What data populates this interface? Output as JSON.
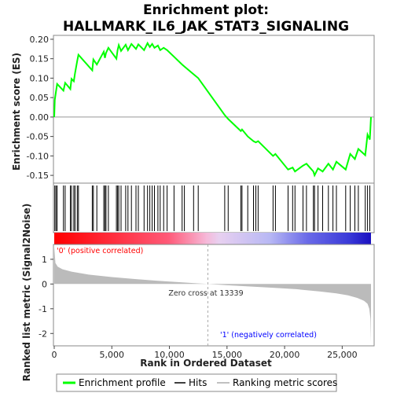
{
  "title_line1": "Enrichment plot:",
  "title_line2": "HALLMARK_IL6_JAK_STAT3_SIGNALING",
  "es_ylabel": "Enrichment score (ES)",
  "metric_ylabel": "Ranked list metric (Signal2Noise)",
  "xlabel": "Rank in Ordered Dataset",
  "zero_cross_label": "Zero cross at 13339",
  "pos_label": "'0' (positive correlated)",
  "neg_label": "'1' (negatively correlated)",
  "legend": [
    {
      "label": "Enrichment profile",
      "color": "#00ff00",
      "icon": "green-line"
    },
    {
      "label": "Hits",
      "color": "#000000",
      "icon": "black-line"
    },
    {
      "label": "Ranking metric scores",
      "color": "#c0c0c0",
      "icon": "gray-line"
    }
  ],
  "colors": {
    "profile": "#00ff00",
    "pos_text": "#ff0000",
    "neg_text": "#0000ff",
    "metric": "#bbbbbb"
  },
  "chart_data": {
    "type": "line",
    "x_ticks": [
      0,
      5000,
      10000,
      15000,
      20000,
      25000
    ],
    "x_tick_labels": [
      "0",
      "5,000",
      "10,000",
      "15,000",
      "20,000",
      "25,000"
    ],
    "xlim": [
      0,
      28600
    ],
    "es_yticks": [
      0.2,
      0.15,
      0.1,
      0.05,
      0.0,
      -0.05,
      -0.1,
      -0.15
    ],
    "es_ytick_labels": [
      "0.20",
      "0.15",
      "0.10",
      "0.05",
      "0.00",
      "-0.05",
      "-0.10",
      "-0.15"
    ],
    "es_ylim": [
      -0.17,
      0.21
    ],
    "metric_yticks": [
      1,
      0,
      -1,
      -2
    ],
    "metric_ytick_labels": [
      "1",
      "0",
      "-1",
      "-2"
    ],
    "metric_ylim": [
      -2.5,
      1.6
    ],
    "zero_cross": 13339,
    "total_genes": 27500,
    "hits": [
      50,
      150,
      250,
      800,
      950,
      1400,
      1500,
      1700,
      1800,
      2000,
      2100,
      3300,
      3400,
      3700,
      4300,
      4400,
      4500,
      4700,
      5400,
      5500,
      5600,
      5800,
      6200,
      6400,
      6700,
      7100,
      7300,
      7800,
      8100,
      8300,
      8500,
      8700,
      9000,
      9200,
      9500,
      9800,
      10400,
      11100,
      11300,
      12100,
      12500,
      14800,
      15100,
      16200,
      16300,
      16800,
      17300,
      17500,
      17700,
      19000,
      19200,
      20300,
      20700,
      20900,
      21600,
      21900,
      22500,
      22600,
      22900,
      23300,
      23800,
      24200,
      24500,
      25300,
      25700,
      26100,
      26400,
      27000,
      27200,
      27400
    ],
    "es_series": {
      "name": "Enrichment profile",
      "x": [
        0,
        50,
        150,
        250,
        800,
        950,
        1400,
        1500,
        1700,
        1800,
        2000,
        2100,
        3300,
        3400,
        3700,
        4300,
        4400,
        4500,
        4700,
        5400,
        5500,
        5600,
        5800,
        6200,
        6400,
        6700,
        7100,
        7300,
        7800,
        8100,
        8300,
        8500,
        8700,
        9000,
        9200,
        9500,
        9800,
        10400,
        11100,
        11300,
        12100,
        12500,
        14800,
        15100,
        16200,
        16300,
        16800,
        17300,
        17500,
        17700,
        19000,
        19200,
        20300,
        20700,
        20900,
        21600,
        21900,
        22500,
        22600,
        22900,
        23300,
        23800,
        24200,
        24500,
        25300,
        25700,
        26100,
        26400,
        27000,
        27200,
        27400,
        27499
      ],
      "y": [
        0.0,
        0.044,
        0.065,
        0.085,
        0.068,
        0.088,
        0.072,
        0.098,
        0.092,
        0.112,
        0.145,
        0.16,
        0.12,
        0.148,
        0.135,
        0.168,
        0.152,
        0.165,
        0.178,
        0.15,
        0.172,
        0.185,
        0.17,
        0.186,
        0.172,
        0.188,
        0.175,
        0.187,
        0.172,
        0.19,
        0.18,
        0.188,
        0.178,
        0.184,
        0.172,
        0.178,
        0.172,
        0.155,
        0.135,
        0.13,
        0.11,
        0.1,
        0.005,
        -0.005,
        -0.036,
        -0.032,
        -0.05,
        -0.062,
        -0.065,
        -0.062,
        -0.1,
        -0.095,
        -0.135,
        -0.13,
        -0.14,
        -0.125,
        -0.12,
        -0.14,
        -0.15,
        -0.132,
        -0.14,
        -0.12,
        -0.135,
        -0.115,
        -0.135,
        -0.095,
        -0.108,
        -0.082,
        -0.098,
        -0.045,
        -0.058,
        0.0
      ]
    },
    "metric_series": {
      "name": "Ranking metric scores",
      "x": [
        0,
        100,
        300,
        700,
        1500,
        3000,
        5000,
        7000,
        9000,
        11000,
        13339,
        15000,
        17000,
        19000,
        21000,
        23000,
        24500,
        25500,
        26300,
        26900,
        27200,
        27350,
        27450,
        27499
      ],
      "y": [
        1.5,
        0.85,
        0.7,
        0.6,
        0.5,
        0.38,
        0.28,
        0.2,
        0.13,
        0.07,
        0.0,
        -0.05,
        -0.1,
        -0.15,
        -0.21,
        -0.3,
        -0.38,
        -0.46,
        -0.56,
        -0.68,
        -0.8,
        -1.0,
        -1.4,
        -2.35
      ]
    }
  }
}
